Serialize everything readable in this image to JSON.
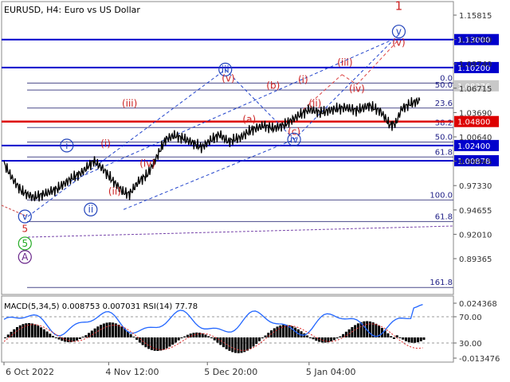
{
  "header": {
    "symbol": "EURUSD",
    "timeframe": "H4:",
    "description": "Euro vs US Dollar"
  },
  "chart_data": {
    "type": "line",
    "price_axis": {
      "ticks": [
        "1.15815",
        "1.12790",
        "1.09740",
        "1.06715",
        "1.03690",
        "1.00640",
        "0.99945",
        "0.97330",
        "0.94655",
        "0.92010",
        "0.89365"
      ],
      "range": [
        0.875,
        1.168
      ]
    },
    "time_axis": {
      "labels": [
        "6 Oct 2022",
        "4 Nov 12:00",
        "5 Dec 20:00",
        "5 Jan 04:00"
      ]
    },
    "price_series": [
      [
        0,
        1.006
      ],
      [
        3,
        0.99
      ],
      [
        6,
        0.978
      ],
      [
        10,
        0.972
      ],
      [
        14,
        0.976
      ],
      [
        18,
        0.981
      ],
      [
        22,
        0.99
      ],
      [
        26,
        0.997
      ],
      [
        30,
        1.0085
      ],
      [
        33,
        1.001
      ],
      [
        36,
        0.99
      ],
      [
        40,
        0.977
      ],
      [
        42,
        0.9755
      ],
      [
        45,
        0.988
      ],
      [
        48,
        0.995
      ],
      [
        51,
        1.012
      ],
      [
        54,
        1.03
      ],
      [
        57,
        1.034
      ],
      [
        60,
        1.031
      ],
      [
        63,
        1.027
      ],
      [
        66,
        1.022
      ],
      [
        69,
        1.029
      ],
      [
        72,
        1.035
      ],
      [
        75,
        1.028
      ],
      [
        79,
        1.032
      ],
      [
        83,
        1.04
      ],
      [
        87,
        1.044
      ],
      [
        90,
        1.041
      ],
      [
        94,
        1.045
      ],
      [
        98,
        1.053
      ],
      [
        102,
        1.06
      ],
      [
        106,
        1.057
      ],
      [
        110,
        1.06
      ],
      [
        114,
        1.062
      ],
      [
        118,
        1.059
      ],
      [
        122,
        1.064
      ],
      [
        126,
        1.058
      ],
      [
        129,
        1.0445
      ],
      [
        131,
        1.046
      ],
      [
        133,
        1.061
      ],
      [
        136,
        1.066
      ],
      [
        139,
        1.069
      ]
    ],
    "h_levels": [
      {
        "label": "1.13000",
        "price": 1.13,
        "color": "#0000cc",
        "width": 2
      },
      {
        "label": "1.10200",
        "price": 1.102,
        "color": "#0000cc",
        "width": 2
      },
      {
        "label": "1.04800",
        "price": 1.048,
        "color": "#dd0000",
        "width": 2.5
      },
      {
        "label": "1.02400",
        "price": 1.024,
        "color": "#0000cc",
        "width": 2
      },
      {
        "label": "1.00878",
        "price": 1.00878,
        "color": "#0000cc",
        "width": 2
      }
    ],
    "current_price": "1.08376",
    "fib_levels": [
      {
        "label": "0.0",
        "price": 1.0865
      },
      {
        "label": "50.0",
        "price": 1.0795
      },
      {
        "label": "23.6",
        "price": 1.0615
      },
      {
        "label": "38.2",
        "price": 1.042
      },
      {
        "label": "50.0",
        "price": 1.0275
      },
      {
        "label": "61.8",
        "price": 1.0125
      },
      {
        "label": "100.0",
        "price": 0.9695
      },
      {
        "label": "61.8",
        "price": 0.948
      },
      {
        "label": "161.8",
        "price": 0.882
      }
    ],
    "wave_labels": [
      {
        "text": "1",
        "color": "#cc2222",
        "price": 1.163,
        "x": 132,
        "size": 15
      },
      {
        "text": "v",
        "color": "#2244bb",
        "price": 1.138,
        "x": 132,
        "circle": true
      },
      {
        "text": "(v)",
        "color": "#cc2222",
        "price": 1.127,
        "x": 132
      },
      {
        "text": "(iii)",
        "color": "#cc2222",
        "price": 1.107,
        "x": 114
      },
      {
        "text": "(iv)",
        "color": "#cc2222",
        "price": 1.081,
        "x": 118
      },
      {
        "text": "(i)",
        "color": "#cc2222",
        "price": 1.09,
        "x": 100
      },
      {
        "text": "(ii)",
        "color": "#cc2222",
        "price": 1.066,
        "x": 104
      },
      {
        "text": "iii",
        "color": "#2244bb",
        "price": 1.1,
        "x": 74,
        "circle": true
      },
      {
        "text": "(v)",
        "color": "#cc2222",
        "price": 1.091,
        "x": 75
      },
      {
        "text": "(b)",
        "color": "#cc2222",
        "price": 1.084,
        "x": 90
      },
      {
        "text": "(a)",
        "color": "#cc2222",
        "price": 1.05,
        "x": 82
      },
      {
        "text": "(c)",
        "color": "#cc2222",
        "price": 1.038,
        "x": 97
      },
      {
        "text": "iv",
        "color": "#2244bb",
        "price": 1.03,
        "x": 97,
        "circle": true
      },
      {
        "text": "(iii)",
        "color": "#cc2222",
        "price": 1.066,
        "x": 42
      },
      {
        "text": "(i)",
        "color": "#cc2222",
        "price": 1.026,
        "x": 34
      },
      {
        "text": "(iv)",
        "color": "#cc2222",
        "price": 1.006,
        "x": 48
      },
      {
        "text": "(ii)",
        "color": "#cc2222",
        "price": 0.978,
        "x": 37
      },
      {
        "text": "i",
        "color": "#2244bb",
        "price": 1.024,
        "x": 21,
        "circle": true
      },
      {
        "text": "ii",
        "color": "#2244bb",
        "price": 0.96,
        "x": 29,
        "circle": true
      },
      {
        "text": "v",
        "color": "#2244bb",
        "price": 0.953,
        "x": 7,
        "circle": true
      },
      {
        "text": "5",
        "color": "#cc2222",
        "price": 0.9405,
        "x": 7
      },
      {
        "text": "5",
        "color": "#22aa22",
        "price": 0.926,
        "x": 7,
        "circle": true
      },
      {
        "text": "A",
        "color": "#662288",
        "price": 0.9125,
        "x": 7,
        "circle": true
      }
    ],
    "indicator": {
      "label": "MACD(5,34,5) 0.008753 0.007031 RSI(14) 77.78",
      "ticks": [
        "0.024368",
        "70.00",
        "30.00",
        "-0.013476"
      ]
    }
  }
}
